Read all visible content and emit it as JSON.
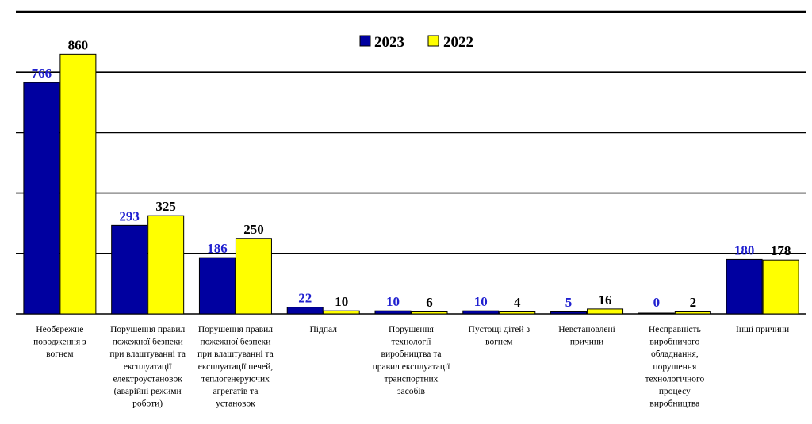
{
  "chart_data": {
    "type": "bar",
    "categories": [
      [
        "Необережне",
        "поводження з",
        "вогнем"
      ],
      [
        "Порушення правил",
        "пожежної безпеки",
        "при влаштуванні та",
        "експлуатації",
        "електроустановок",
        "(аварійні режими",
        "роботи)"
      ],
      [
        "Порушення правил",
        "пожежної безпеки",
        "при влаштуванні та",
        "експлуатації печей,",
        "теплогенеруючих",
        "агрегатів та",
        "установок"
      ],
      [
        "Підпал"
      ],
      [
        "Порушення",
        "технології",
        "виробництва та",
        "правил експлуатації",
        "транспортних",
        "засобів"
      ],
      [
        "Пустощі дітей з",
        "вогнем"
      ],
      [
        "Невстановлені",
        "причини"
      ],
      [
        "Несправність",
        "виробничого",
        "обладнання,",
        "порушення",
        "технологічного",
        "процесу",
        "виробництва"
      ],
      [
        "Інші причини"
      ]
    ],
    "series": [
      {
        "name": "2023",
        "color": "#0000A0",
        "label_color": "#2020D0",
        "values": [
          766,
          293,
          186,
          22,
          10,
          10,
          5,
          0,
          180
        ]
      },
      {
        "name": "2022",
        "color": "#FFFF00",
        "label_color": "#000000",
        "values": [
          860,
          325,
          250,
          10,
          6,
          4,
          16,
          2,
          178
        ]
      }
    ],
    "ylim": [
      0,
      1000
    ],
    "grid": true,
    "legend_position": "top-center"
  }
}
